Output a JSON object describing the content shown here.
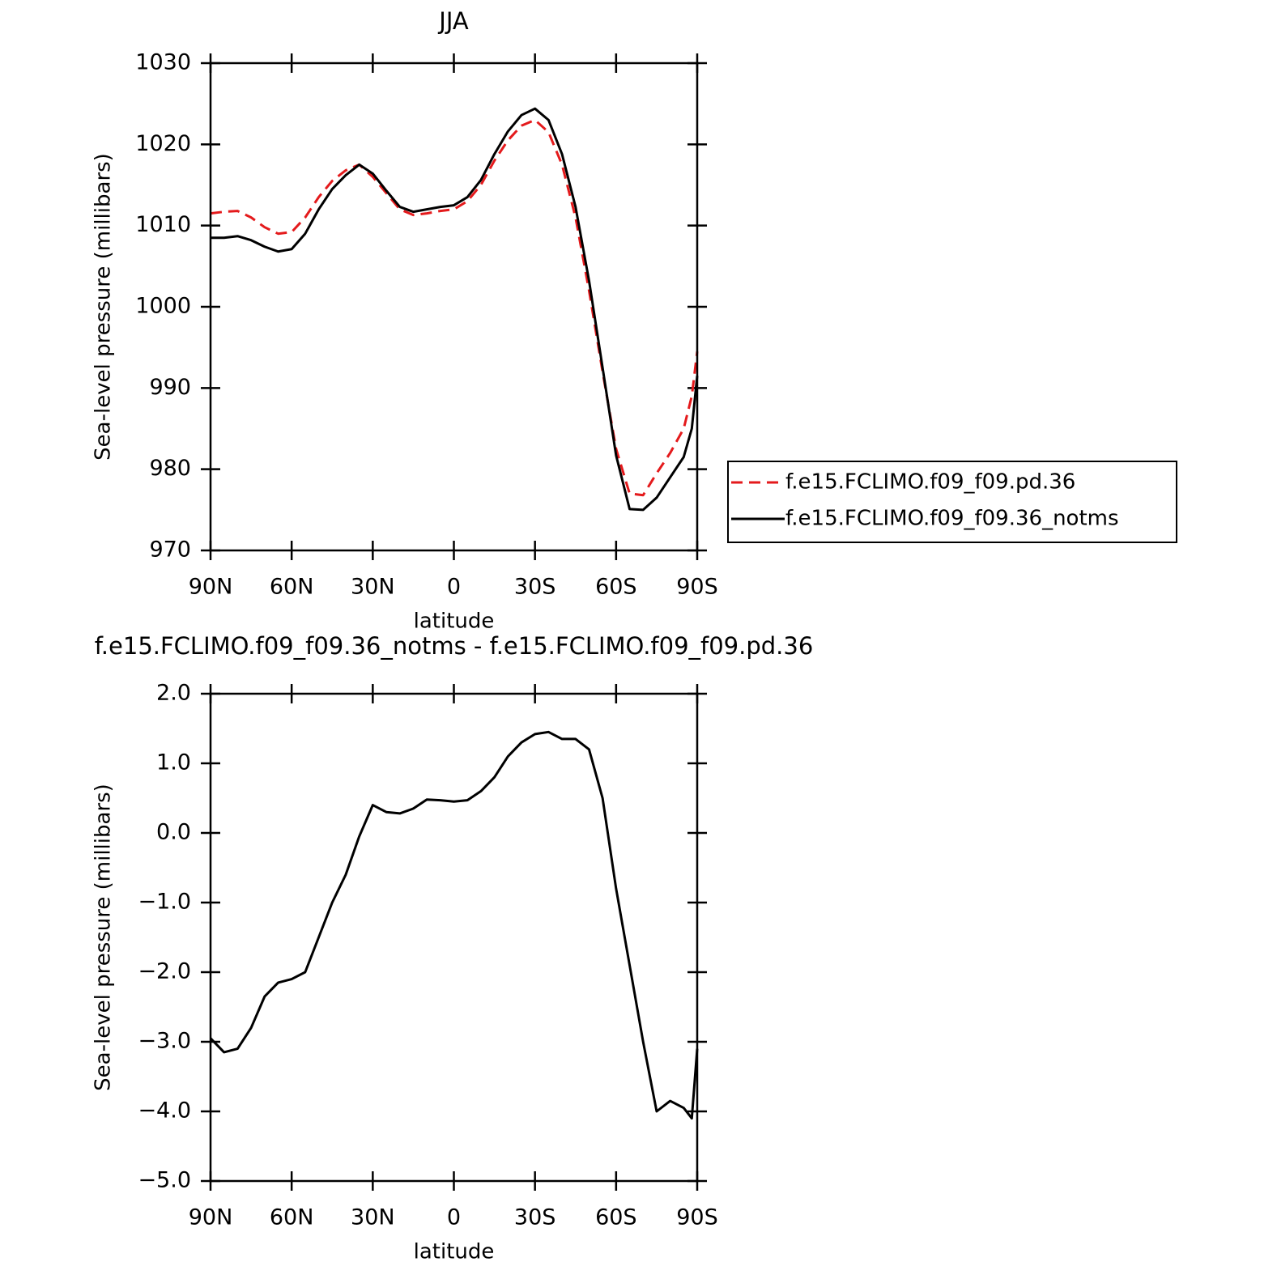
{
  "chart_data": [
    {
      "type": "line",
      "title": "JJA",
      "xlabel": "latitude",
      "ylabel": "Sea-level pressure (millibars)",
      "x": [
        90,
        85,
        80,
        75,
        70,
        65,
        60,
        55,
        50,
        45,
        40,
        35,
        30,
        25,
        20,
        15,
        10,
        5,
        0,
        -5,
        -10,
        -15,
        -20,
        -25,
        -30,
        -35,
        -40,
        -45,
        -50,
        -55,
        -60,
        -65,
        -70,
        -75,
        -80,
        -85,
        -88,
        -90
      ],
      "xlim": [
        90,
        -90
      ],
      "xticks": [
        {
          "value": 90,
          "label": "90N"
        },
        {
          "value": 60,
          "label": "60N"
        },
        {
          "value": 30,
          "label": "30N"
        },
        0,
        {
          "value": -30,
          "label": "30S"
        },
        {
          "value": -60,
          "label": "60S"
        },
        {
          "value": -90,
          "label": "90S"
        }
      ],
      "ylim": [
        970,
        1030
      ],
      "yticks": [
        970,
        980,
        990,
        1000,
        1010,
        1020,
        1030
      ],
      "legend": "right",
      "series": [
        {
          "name": "f.e15.FCLIMO.f09_f09.pd.36",
          "color": "#e41a1c",
          "style": "dashed",
          "values": [
            1011.5,
            1011.7,
            1011.8,
            1011.0,
            1009.8,
            1009.0,
            1009.2,
            1011.0,
            1013.5,
            1015.5,
            1016.8,
            1017.5,
            1016.0,
            1014.0,
            1012.0,
            1011.3,
            1011.5,
            1011.8,
            1012.0,
            1013.0,
            1015.0,
            1018.0,
            1020.5,
            1022.3,
            1023.0,
            1021.5,
            1017.5,
            1011.0,
            1002.0,
            992.0,
            982.5,
            977.0,
            976.8,
            979.5,
            982.0,
            985.0,
            989.0,
            994.5
          ]
        },
        {
          "name": "f.e15.FCLIMO.f09_f09.36_notms",
          "color": "#000000",
          "style": "solid",
          "values": [
            1008.5,
            1008.5,
            1008.7,
            1008.2,
            1007.4,
            1006.8,
            1007.1,
            1009.0,
            1012.0,
            1014.5,
            1016.2,
            1017.5,
            1016.4,
            1014.3,
            1012.3,
            1011.7,
            1012.0,
            1012.3,
            1012.5,
            1013.5,
            1015.6,
            1018.8,
            1021.6,
            1023.6,
            1024.4,
            1023.0,
            1018.8,
            1012.3,
            1003.2,
            992.5,
            981.7,
            975.1,
            975.0,
            976.5,
            979.0,
            981.5,
            985.0,
            991.5
          ]
        }
      ]
    },
    {
      "type": "line",
      "title": "f.e15.FCLIMO.f09_f09.36_notms - f.e15.FCLIMO.f09_f09.pd.36",
      "xlabel": "latitude",
      "ylabel": "Sea-level pressure (millibars)",
      "x": [
        90,
        85,
        80,
        75,
        70,
        65,
        60,
        55,
        50,
        45,
        40,
        35,
        30,
        25,
        20,
        15,
        10,
        5,
        0,
        -5,
        -10,
        -15,
        -20,
        -25,
        -30,
        -35,
        -40,
        -45,
        -50,
        -55,
        -60,
        -65,
        -70,
        -75,
        -80,
        -85,
        -88,
        -90
      ],
      "xlim": [
        90,
        -90
      ],
      "xticks": [
        {
          "value": 90,
          "label": "90N"
        },
        {
          "value": 60,
          "label": "60N"
        },
        {
          "value": 30,
          "label": "30N"
        },
        0,
        {
          "value": -30,
          "label": "30S"
        },
        {
          "value": -60,
          "label": "60S"
        },
        {
          "value": -90,
          "label": "90S"
        }
      ],
      "ylim": [
        -5,
        2
      ],
      "yticks": [
        {
          "value": -5,
          "label": "−5.0"
        },
        {
          "value": -4,
          "label": "−4.0"
        },
        {
          "value": -3,
          "label": "−3.0"
        },
        {
          "value": -2,
          "label": "−2.0"
        },
        {
          "value": -1,
          "label": "−1.0"
        },
        {
          "value": 0,
          "label": "0.0"
        },
        {
          "value": 1,
          "label": "1.0"
        },
        {
          "value": 2,
          "label": "2.0"
        }
      ],
      "series": [
        {
          "color": "#000000",
          "style": "solid",
          "values": [
            -2.95,
            -3.15,
            -3.1,
            -2.8,
            -2.35,
            -2.15,
            -2.1,
            -2.0,
            -1.5,
            -1.0,
            -0.6,
            -0.05,
            0.4,
            0.3,
            0.28,
            0.35,
            0.48,
            0.47,
            0.45,
            0.47,
            0.6,
            0.8,
            1.1,
            1.3,
            1.42,
            1.45,
            1.35,
            1.35,
            1.2,
            0.5,
            -0.8,
            -1.9,
            -3.0,
            -4.0,
            -3.85,
            -3.95,
            -4.1,
            -3.1
          ]
        }
      ]
    }
  ]
}
